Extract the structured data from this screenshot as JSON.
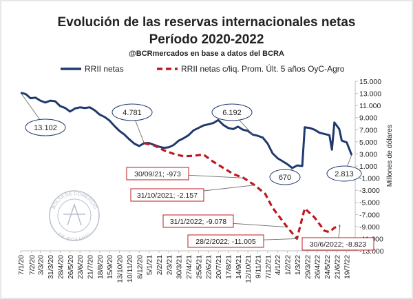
{
  "chart_data": {
    "type": "line",
    "title": "Evolución de las reservas internacionales netas",
    "subtitle": "Período 2020-2022",
    "source": "@BCRmercados en base a datos del BCRA",
    "ylabel": "Millones de dólares",
    "ylim": [
      -13000,
      15000
    ],
    "yticks": [
      15000,
      13000,
      11000,
      9000,
      7000,
      5000,
      3000,
      1000,
      -1000,
      -3000,
      -5000,
      -7000,
      -9000,
      -11000,
      -13000
    ],
    "ytick_labels": [
      "15.000",
      "13.000",
      "11.000",
      "9.000",
      "7.000",
      "5.000",
      "3.000",
      "1.000",
      "-1.000",
      "-3.000",
      "-5.000",
      "-7.000",
      "-9.000",
      "-11.000",
      "-13.000"
    ],
    "grid": false,
    "legend_position": "top",
    "x_range": [
      "2020-01-07",
      "2022-08-12"
    ],
    "xtick_labels": [
      "7/1/20",
      "7/2/20",
      "3/3/20",
      "31/3/20",
      "28/4/20",
      "26/5/20",
      "23/6/20",
      "21/7/20",
      "18/8/20",
      "15/9/20",
      "13/10/20",
      "10/11/20",
      "8/12/20",
      "5/1/21",
      "2/2/21",
      "2/3/21",
      "30/3/21",
      "27/4/21",
      "25/5/21",
      "22/6/21",
      "20/7/21",
      "17/8/21",
      "14/9/21",
      "12/10/21",
      "9/11/21",
      "7/12/21",
      "4/1/22",
      "1/2/22",
      "1/3/22",
      "29/3/22",
      "26/4/22",
      "24/5/22",
      "21/6/22",
      "19/7/22"
    ],
    "xtick_dates": [
      "2020-01-07",
      "2020-02-07",
      "2020-03-03",
      "2020-03-31",
      "2020-04-28",
      "2020-05-26",
      "2020-06-23",
      "2020-07-21",
      "2020-08-18",
      "2020-09-15",
      "2020-10-13",
      "2020-11-10",
      "2020-12-08",
      "2021-01-05",
      "2021-02-02",
      "2021-03-02",
      "2021-03-30",
      "2021-04-27",
      "2021-05-25",
      "2021-06-22",
      "2021-07-20",
      "2021-08-17",
      "2021-09-14",
      "2021-10-12",
      "2021-11-09",
      "2021-12-07",
      "2022-01-04",
      "2022-02-01",
      "2022-03-01",
      "2022-03-29",
      "2022-04-26",
      "2022-05-24",
      "2022-06-21",
      "2022-07-19"
    ],
    "series": [
      {
        "name": "RRII netas",
        "color": "#1f3a6e",
        "style": "solid",
        "points": [
          [
            "2020-01-07",
            13102
          ],
          [
            "2020-01-21",
            12900
          ],
          [
            "2020-02-04",
            12200
          ],
          [
            "2020-02-18",
            12300
          ],
          [
            "2020-03-03",
            11800
          ],
          [
            "2020-03-17",
            11500
          ],
          [
            "2020-03-31",
            11800
          ],
          [
            "2020-04-14",
            11700
          ],
          [
            "2020-04-28",
            10900
          ],
          [
            "2020-05-12",
            10600
          ],
          [
            "2020-05-26",
            10000
          ],
          [
            "2020-06-09",
            10500
          ],
          [
            "2020-06-23",
            10700
          ],
          [
            "2020-07-07",
            10600
          ],
          [
            "2020-07-21",
            10700
          ],
          [
            "2020-08-04",
            10200
          ],
          [
            "2020-08-18",
            9500
          ],
          [
            "2020-09-01",
            9100
          ],
          [
            "2020-09-15",
            8500
          ],
          [
            "2020-09-29",
            7600
          ],
          [
            "2020-10-13",
            6800
          ],
          [
            "2020-10-27",
            6200
          ],
          [
            "2020-11-10",
            5400
          ],
          [
            "2020-11-24",
            4700
          ],
          [
            "2020-12-08",
            4300
          ],
          [
            "2020-12-22",
            4781
          ],
          [
            "2021-01-05",
            4800
          ],
          [
            "2021-01-19",
            4500
          ],
          [
            "2021-02-02",
            4200
          ],
          [
            "2021-02-16",
            4000
          ],
          [
            "2021-03-02",
            4100
          ],
          [
            "2021-03-16",
            4500
          ],
          [
            "2021-03-30",
            5200
          ],
          [
            "2021-04-13",
            5600
          ],
          [
            "2021-04-27",
            6100
          ],
          [
            "2021-05-11",
            6900
          ],
          [
            "2021-05-25",
            7300
          ],
          [
            "2021-06-08",
            7700
          ],
          [
            "2021-06-22",
            7900
          ],
          [
            "2021-07-06",
            8100
          ],
          [
            "2021-07-20",
            8600
          ],
          [
            "2021-08-03",
            7800
          ],
          [
            "2021-08-17",
            7300
          ],
          [
            "2021-08-31",
            7100
          ],
          [
            "2021-09-14",
            7500
          ],
          [
            "2021-09-28",
            7000
          ],
          [
            "2021-10-12",
            6800
          ],
          [
            "2021-10-26",
            6192
          ],
          [
            "2021-11-09",
            6000
          ],
          [
            "2021-11-23",
            5700
          ],
          [
            "2021-12-07",
            4700
          ],
          [
            "2021-12-21",
            3100
          ],
          [
            "2022-01-04",
            2300
          ],
          [
            "2022-01-18",
            1800
          ],
          [
            "2022-02-01",
            1300
          ],
          [
            "2022-02-15",
            670
          ],
          [
            "2022-03-01",
            1100
          ],
          [
            "2022-03-15",
            1000
          ],
          [
            "2022-03-22",
            7400
          ],
          [
            "2022-04-05",
            7300
          ],
          [
            "2022-04-19",
            7000
          ],
          [
            "2022-05-03",
            6500
          ],
          [
            "2022-05-17",
            6300
          ],
          [
            "2022-05-31",
            6100
          ],
          [
            "2022-06-07",
            3700
          ],
          [
            "2022-06-14",
            8200
          ],
          [
            "2022-06-28",
            7100
          ],
          [
            "2022-07-05",
            5200
          ],
          [
            "2022-07-19",
            4900
          ],
          [
            "2022-08-02",
            2813
          ]
        ]
      },
      {
        "name": "RRII netas c/liq. Prom. Últ. 5 años OyC-Agro",
        "color": "#c0171e",
        "style": "dashed",
        "points": [
          [
            "2020-12-22",
            4781
          ],
          [
            "2021-01-19",
            4400
          ],
          [
            "2021-02-16",
            3600
          ],
          [
            "2021-03-16",
            3000
          ],
          [
            "2021-04-13",
            2600
          ],
          [
            "2021-05-11",
            2700
          ],
          [
            "2021-06-08",
            2900
          ],
          [
            "2021-07-06",
            1700
          ],
          [
            "2021-08-03",
            700
          ],
          [
            "2021-08-31",
            -300
          ],
          [
            "2021-09-30",
            -973
          ],
          [
            "2021-10-31",
            -2157
          ],
          [
            "2021-11-30",
            -3600
          ],
          [
            "2021-12-21",
            -5900
          ],
          [
            "2022-01-31",
            -9078
          ],
          [
            "2022-02-28",
            -11005
          ],
          [
            "2022-03-22",
            -6000
          ],
          [
            "2022-04-19",
            -7500
          ],
          [
            "2022-05-17",
            -9700
          ],
          [
            "2022-05-31",
            -9900
          ],
          [
            "2022-06-14",
            -9200
          ],
          [
            "2022-06-30",
            -8823
          ]
        ]
      }
    ],
    "annotations": [
      {
        "label": "13.102",
        "series": 0,
        "date": "2020-01-07",
        "value": 13102,
        "shape": "ellipse"
      },
      {
        "label": "4.781",
        "series": 0,
        "date": "2020-12-22",
        "value": 4781,
        "shape": "ellipse"
      },
      {
        "label": "6.192",
        "series": 0,
        "date": "2021-10-26",
        "value": 6192,
        "shape": "ellipse"
      },
      {
        "label": "670",
        "series": 0,
        "date": "2022-02-15",
        "value": 670,
        "shape": "ellipse"
      },
      {
        "label": "2.813",
        "series": 0,
        "date": "2022-08-02",
        "value": 2813,
        "shape": "ellipse"
      },
      {
        "label": "30/09/21; -973",
        "series": 1,
        "date": "2021-09-30",
        "value": -973,
        "shape": "box"
      },
      {
        "label": "31/10/2021; -2.157",
        "series": 1,
        "date": "2021-10-31",
        "value": -2157,
        "shape": "box"
      },
      {
        "label": "31/1/2022; -9.078",
        "series": 1,
        "date": "2022-01-31",
        "value": -9078,
        "shape": "box"
      },
      {
        "label": "28/2/2022; -11.005",
        "series": 1,
        "date": "2022-02-28",
        "value": -11005,
        "shape": "box"
      },
      {
        "label": "30/6/2022; -8.823",
        "series": 1,
        "date": "2022-06-30",
        "value": -8823,
        "shape": "box"
      }
    ]
  },
  "watermark": {
    "text_top": "BOLSA DE COMERCIO",
    "text_bottom": "DE ROSARIO",
    "color": "#b8c0cc"
  }
}
